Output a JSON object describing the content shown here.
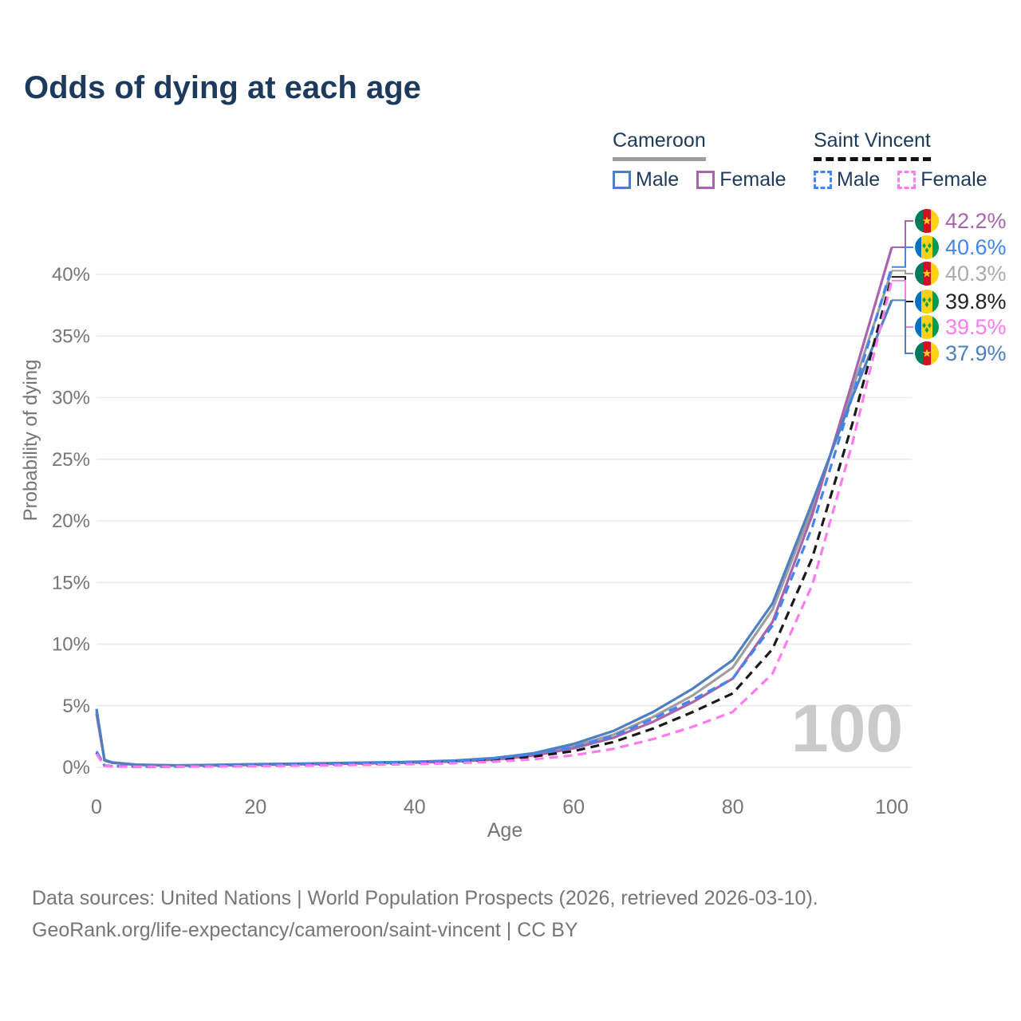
{
  "title": "Odds of dying at each age",
  "legend": {
    "groups": [
      {
        "label": "Cameroon",
        "line_style": "solid",
        "underline_color": "#9e9e9e",
        "items": [
          {
            "label": "Male",
            "color": "#4e7fc1",
            "dashed": false
          },
          {
            "label": "Female",
            "color": "#a964ae",
            "dashed": false
          }
        ]
      },
      {
        "label": "Saint Vincent",
        "line_style": "dashed",
        "underline_color": "#111111",
        "items": [
          {
            "label": "Male",
            "color": "#4186f0",
            "dashed": true
          },
          {
            "label": "Female",
            "color": "#ff7bef",
            "dashed": true
          }
        ]
      }
    ]
  },
  "chart_data": {
    "type": "line",
    "title": "Odds of dying at each age",
    "xlabel": "Age",
    "ylabel": "Probability of dying",
    "xlim": [
      0,
      100
    ],
    "ylim": [
      0,
      44
    ],
    "grid": "horizontal",
    "watermark": "100",
    "x_tick_labels": [
      "0",
      "20",
      "40",
      "60",
      "80",
      "100"
    ],
    "x_tick_values": [
      0,
      20,
      40,
      60,
      80,
      100
    ],
    "y_tick_labels": [
      "0%",
      "5%",
      "10%",
      "15%",
      "20%",
      "25%",
      "30%",
      "35%",
      "40%"
    ],
    "y_tick_values": [
      0,
      5,
      10,
      15,
      20,
      25,
      30,
      35,
      40
    ],
    "ages": [
      0,
      1,
      2,
      5,
      10,
      15,
      20,
      25,
      30,
      35,
      40,
      45,
      50,
      55,
      60,
      65,
      70,
      75,
      80,
      85,
      90,
      95,
      100
    ],
    "series": [
      {
        "id": "cameroon-total",
        "name": "Cameroon",
        "sex": "Both",
        "color": "#9e9e9e",
        "dashed": false,
        "values": [
          4.55,
          0.58,
          0.38,
          0.21,
          0.15,
          0.18,
          0.23,
          0.27,
          0.31,
          0.36,
          0.42,
          0.51,
          0.68,
          1.05,
          1.72,
          2.65,
          4.1,
          5.85,
          8.1,
          12.8,
          21.0,
          30.6,
          40.3
        ]
      },
      {
        "id": "cameroon-female",
        "name": "Cameroon Female",
        "sex": "Female",
        "color": "#a964ae",
        "dashed": false,
        "values": [
          4.35,
          0.55,
          0.36,
          0.2,
          0.14,
          0.16,
          0.2,
          0.24,
          0.28,
          0.33,
          0.38,
          0.47,
          0.62,
          0.95,
          1.55,
          2.4,
          3.7,
          5.3,
          7.2,
          11.8,
          20.5,
          31.2,
          42.2
        ]
      },
      {
        "id": "cameroon-male",
        "name": "Cameroon Male",
        "sex": "Male",
        "color": "#4e7fc1",
        "dashed": false,
        "values": [
          4.75,
          0.6,
          0.4,
          0.22,
          0.16,
          0.2,
          0.26,
          0.3,
          0.35,
          0.4,
          0.45,
          0.55,
          0.75,
          1.15,
          1.9,
          2.95,
          4.5,
          6.4,
          8.7,
          13.3,
          21.5,
          30.0,
          37.9
        ]
      },
      {
        "id": "saint-vincent-total",
        "name": "Saint Vincent",
        "sex": "Both",
        "color": "#1a1a1a",
        "dashed": true,
        "values": [
          1.2,
          0.13,
          0.09,
          0.06,
          0.06,
          0.1,
          0.16,
          0.21,
          0.25,
          0.29,
          0.35,
          0.44,
          0.6,
          0.88,
          1.32,
          2.05,
          3.15,
          4.5,
          6.0,
          9.6,
          17.0,
          27.8,
          39.8
        ]
      },
      {
        "id": "saint-vincent-male",
        "name": "Saint Vincent Male",
        "sex": "Male",
        "color": "#4186f0",
        "dashed": true,
        "values": [
          1.3,
          0.15,
          0.1,
          0.07,
          0.07,
          0.12,
          0.2,
          0.26,
          0.3,
          0.35,
          0.42,
          0.52,
          0.72,
          1.08,
          1.65,
          2.55,
          3.95,
          5.5,
          7.2,
          11.5,
          19.5,
          30.0,
          40.6
        ]
      },
      {
        "id": "saint-vincent-female",
        "name": "Saint Vincent Female",
        "sex": "Female",
        "color": "#ff7bef",
        "dashed": true,
        "values": [
          1.1,
          0.11,
          0.07,
          0.05,
          0.05,
          0.07,
          0.1,
          0.13,
          0.17,
          0.21,
          0.26,
          0.33,
          0.46,
          0.66,
          0.98,
          1.5,
          2.3,
          3.3,
          4.5,
          7.6,
          14.8,
          26.2,
          39.5
        ]
      }
    ],
    "end_labels": [
      {
        "text": "42.2%",
        "value": 42.2,
        "series": "cameroon-female",
        "flag": "cameroon",
        "label_color": "#a964ae"
      },
      {
        "text": "40.6%",
        "value": 40.6,
        "series": "saint-vincent-male",
        "flag": "saint-vincent",
        "label_color": "#4186f0"
      },
      {
        "text": "40.3%",
        "value": 40.3,
        "series": "cameroon-total",
        "flag": "cameroon",
        "label_color": "#ababab"
      },
      {
        "text": "39.8%",
        "value": 39.8,
        "series": "saint-vincent-total",
        "flag": "saint-vincent",
        "label_color": "#222222"
      },
      {
        "text": "39.5%",
        "value": 39.5,
        "series": "saint-vincent-female",
        "flag": "saint-vincent",
        "label_color": "#ff7bef"
      },
      {
        "text": "37.9%",
        "value": 37.9,
        "series": "cameroon-male",
        "flag": "cameroon",
        "label_color": "#4e7fc1"
      }
    ],
    "flag_colors": {
      "cameroon": {
        "stripes": [
          "#007a5e",
          "#ce1126",
          "#fcd116"
        ],
        "star": "#fcd116"
      },
      "saint-vincent": {
        "stripes": [
          "#0072c6",
          "#fcd116",
          "#009e49"
        ],
        "diamond": "#009e49"
      }
    }
  },
  "footer": {
    "line1": "Data sources: United Nations | World Population Prospects (2026, retrieved 2026-03-10).",
    "line2": "GeoRank.org/life-expectancy/cameroon/saint-vincent | CC BY"
  }
}
